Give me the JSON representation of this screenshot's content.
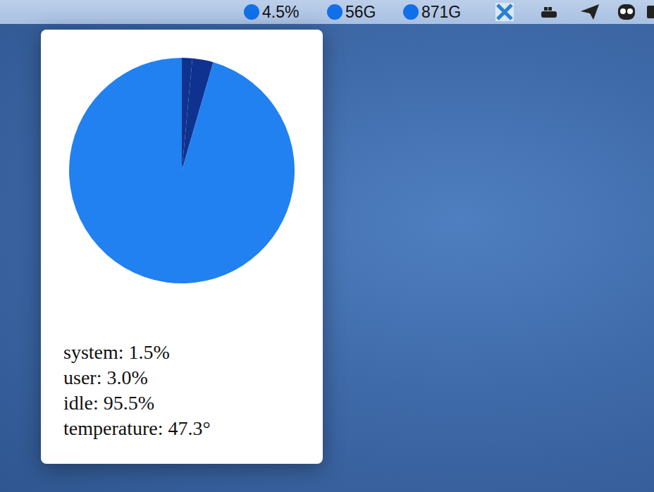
{
  "menu_bar": {
    "items": [
      "4.5%",
      "56G",
      "871G"
    ]
  },
  "chart_data": {
    "type": "pie",
    "categories": [
      "system",
      "user",
      "idle"
    ],
    "values": [
      1.5,
      3.0,
      95.5
    ],
    "colors": [
      "#0f3290",
      "#0f3290",
      "#2181f0"
    ]
  },
  "popup_text": {
    "lines": [
      "system: 1.5%",
      "user: 3.0%",
      "idle: 95.5%",
      "temperature: 47.3°"
    ]
  }
}
